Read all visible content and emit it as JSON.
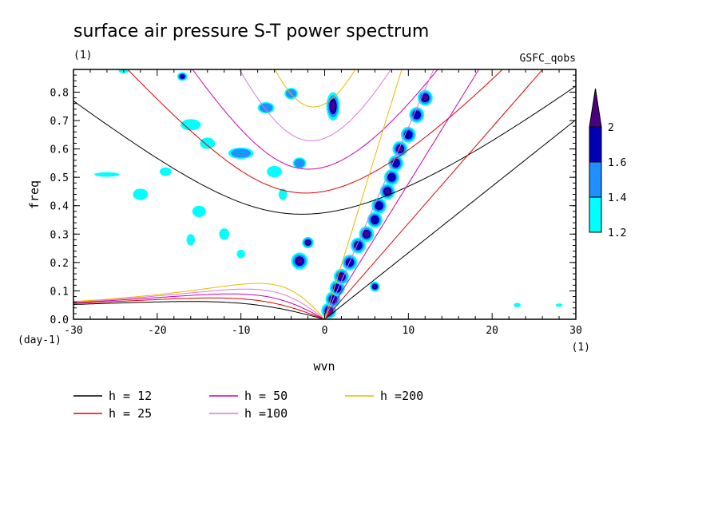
{
  "chart_data": {
    "type": "contour",
    "title": "surface air pressure S-T power spectrum",
    "subtitle_left": "(1)",
    "subtitle_right": "GSFC_qobs",
    "xlabel": "wvn",
    "ylabel": "freq",
    "x_unit": "(1)",
    "y_unit": "(day-1)",
    "xlim": [
      -30,
      30
    ],
    "ylim": [
      0,
      0.88
    ],
    "xticks": [
      -30,
      -20,
      -10,
      0,
      10,
      20,
      30
    ],
    "xtick_labels": [
      "-30",
      "-20",
      "-10",
      "0",
      "10",
      "20",
      "30"
    ],
    "yticks": [
      0,
      0.1,
      0.2,
      0.3,
      0.4,
      0.5,
      0.6,
      0.7,
      0.8
    ],
    "ytick_labels": [
      "0.0",
      "0.1",
      "0.2",
      "0.3",
      "0.4",
      "0.5",
      "0.6",
      "0.7",
      "0.8"
    ],
    "colorbar": {
      "levels": [
        1.2,
        1.4,
        1.6,
        2
      ],
      "level_labels": [
        "1.2",
        "1.4",
        "1.6",
        "2"
      ],
      "colors": [
        "#00ffff",
        "#1e90ff",
        "#0000b4",
        "#4b0082"
      ]
    },
    "series": [
      {
        "name": "h = 12",
        "h": 12,
        "color": "#000000"
      },
      {
        "name": "h = 25",
        "h": 25,
        "color": "#dd0000"
      },
      {
        "name": "h = 50",
        "h": 50,
        "color": "#cc00aa"
      },
      {
        "name": "h =100",
        "h": 100,
        "color": "#dd77dd"
      },
      {
        "name": "h =200",
        "h": 200,
        "color": "#e8b800"
      }
    ],
    "blobs": [
      {
        "x": 1.0,
        "y": 0.75,
        "rx": 0.8,
        "ry": 0.05,
        "level": 4
      },
      {
        "x": -3.0,
        "y": 0.205,
        "rx": 1.0,
        "ry": 0.03,
        "level": 4
      },
      {
        "x": -2.0,
        "y": 0.27,
        "rx": 0.7,
        "ry": 0.02,
        "level": 4
      },
      {
        "x": 6.0,
        "y": 0.115,
        "rx": 0.6,
        "ry": 0.018,
        "level": 4
      },
      {
        "x": -17.0,
        "y": 0.855,
        "rx": 0.6,
        "ry": 0.015,
        "level": 3
      },
      {
        "x": -10.0,
        "y": 0.585,
        "rx": 1.5,
        "ry": 0.02,
        "level": 2
      },
      {
        "x": -7.0,
        "y": 0.745,
        "rx": 1.0,
        "ry": 0.02,
        "level": 2
      },
      {
        "x": -4.0,
        "y": 0.795,
        "rx": 0.8,
        "ry": 0.02,
        "level": 2
      },
      {
        "x": -3.0,
        "y": 0.55,
        "rx": 0.8,
        "ry": 0.02,
        "level": 2
      },
      {
        "x": -19.0,
        "y": 0.52,
        "rx": 0.7,
        "ry": 0.015,
        "level": 1
      },
      {
        "x": -22.0,
        "y": 0.44,
        "rx": 0.9,
        "ry": 0.02,
        "level": 1
      },
      {
        "x": -15.0,
        "y": 0.38,
        "rx": 0.8,
        "ry": 0.02,
        "level": 1
      },
      {
        "x": -16.0,
        "y": 0.685,
        "rx": 1.2,
        "ry": 0.02,
        "level": 1
      },
      {
        "x": -26.0,
        "y": 0.51,
        "rx": 1.5,
        "ry": 0.008,
        "level": 1
      },
      {
        "x": -6.0,
        "y": 0.52,
        "rx": 0.9,
        "ry": 0.02,
        "level": 1
      },
      {
        "x": -14.0,
        "y": 0.62,
        "rx": 0.9,
        "ry": 0.02,
        "level": 1
      },
      {
        "x": -5.0,
        "y": 0.44,
        "rx": 0.5,
        "ry": 0.02,
        "level": 1
      },
      {
        "x": -12.0,
        "y": 0.3,
        "rx": 0.6,
        "ry": 0.02,
        "level": 1
      },
      {
        "x": -16.0,
        "y": 0.28,
        "rx": 0.5,
        "ry": 0.02,
        "level": 1
      },
      {
        "x": -10.0,
        "y": 0.23,
        "rx": 0.5,
        "ry": 0.015,
        "level": 1
      },
      {
        "x": -24.0,
        "y": 0.875,
        "rx": 0.6,
        "ry": 0.008,
        "level": 1
      },
      {
        "x": 23.0,
        "y": 0.05,
        "rx": 0.4,
        "ry": 0.008,
        "level": 1
      },
      {
        "x": 28.0,
        "y": 0.05,
        "rx": 0.4,
        "ry": 0.006,
        "level": 1
      }
    ],
    "ridge": [
      {
        "x": 0.5,
        "y": 0.03
      },
      {
        "x": 1.0,
        "y": 0.07
      },
      {
        "x": 1.5,
        "y": 0.11
      },
      {
        "x": 2.0,
        "y": 0.15
      },
      {
        "x": 3.0,
        "y": 0.2
      },
      {
        "x": 4.0,
        "y": 0.26
      },
      {
        "x": 5.0,
        "y": 0.3
      },
      {
        "x": 6.0,
        "y": 0.35
      },
      {
        "x": 6.5,
        "y": 0.4
      },
      {
        "x": 7.5,
        "y": 0.45
      },
      {
        "x": 8.0,
        "y": 0.5
      },
      {
        "x": 8.5,
        "y": 0.55
      },
      {
        "x": 9.0,
        "y": 0.6
      },
      {
        "x": 10.0,
        "y": 0.65
      },
      {
        "x": 11.0,
        "y": 0.72
      },
      {
        "x": 12.0,
        "y": 0.78
      }
    ]
  }
}
